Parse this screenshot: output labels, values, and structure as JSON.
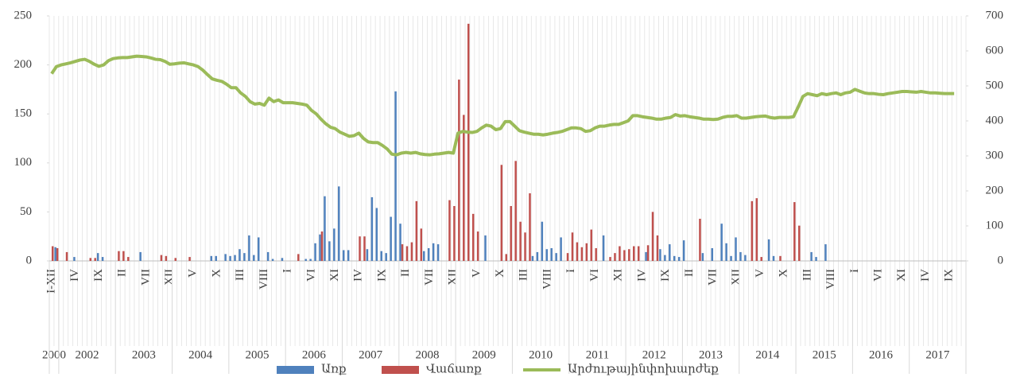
{
  "chart_data": {
    "type": "bar",
    "categories": [
      "I-XII",
      null,
      null,
      null,
      null,
      "IV",
      null,
      null,
      null,
      null,
      "IX",
      null,
      null,
      null,
      null,
      "II",
      null,
      null,
      null,
      null,
      "VII",
      null,
      null,
      null,
      null,
      "XII",
      null,
      null,
      null,
      null,
      "V",
      null,
      null,
      null,
      null,
      "X",
      null,
      null,
      null,
      null,
      "III",
      null,
      null,
      null,
      null,
      "VIII",
      null,
      null,
      null,
      null,
      "I",
      null,
      null,
      null,
      null,
      "VI",
      null,
      null,
      null,
      null,
      "XI",
      null,
      null,
      null,
      null,
      "IV",
      null,
      null,
      null,
      null,
      "IX",
      null,
      null,
      null,
      null,
      "II",
      null,
      null,
      null,
      null,
      "VII",
      null,
      null,
      null,
      null,
      "XII",
      null,
      null,
      null,
      null,
      "V",
      null,
      null,
      null,
      null,
      "X",
      null,
      null,
      null,
      null,
      "III",
      null,
      null,
      null,
      null,
      "VIII",
      null,
      null,
      null,
      null,
      "I",
      null,
      null,
      null,
      null,
      "VI",
      null,
      null,
      null,
      null,
      "XI",
      null,
      null,
      null,
      null,
      "IV",
      null,
      null,
      null,
      null,
      "IX",
      null,
      null,
      null,
      null,
      "II",
      null,
      null,
      null,
      null,
      "VII",
      null,
      null,
      null,
      null,
      "XII",
      null,
      null,
      null,
      null,
      "V",
      null,
      null,
      null,
      null,
      "X",
      null,
      null,
      null,
      null,
      "III",
      null,
      null,
      null,
      null,
      "VIII",
      null,
      null,
      null,
      null,
      "I",
      null,
      null,
      null,
      null,
      "VI",
      null,
      null,
      null,
      null,
      "XI",
      null,
      null,
      null,
      null,
      "IV",
      null,
      null,
      null,
      null,
      "IX",
      null,
      null,
      null
    ],
    "years": [
      "2000",
      "2002",
      "2003",
      "2004",
      "2005",
      "2006",
      "2007",
      "2008",
      "2009",
      "2010",
      "2011",
      "2012",
      "2013",
      "2014",
      "2015",
      "2016",
      "2017"
    ],
    "series": [
      {
        "name": "Առք",
        "color": "#4f81bd",
        "values": [
          0,
          14,
          0,
          0,
          0,
          4,
          0,
          0,
          0,
          0,
          8,
          4,
          0,
          0,
          0,
          0,
          0,
          0,
          0,
          9,
          0,
          0,
          0,
          0,
          0,
          0,
          0,
          0,
          0,
          0,
          0,
          0,
          0,
          0,
          5,
          5,
          0,
          7,
          5,
          6,
          12,
          8,
          26,
          6,
          24,
          0,
          9,
          2,
          0,
          3,
          0,
          0,
          0,
          0,
          2,
          2,
          18,
          27,
          66,
          20,
          33,
          76,
          11,
          11,
          0,
          0,
          0,
          12,
          65,
          54,
          10,
          8,
          45,
          173,
          38,
          0,
          0,
          0,
          0,
          10,
          13,
          18,
          17,
          0,
          0,
          0,
          0,
          0,
          0,
          0,
          0,
          0,
          26,
          0,
          0,
          0,
          0,
          0,
          0,
          0,
          0,
          0,
          5,
          9,
          40,
          12,
          13,
          8,
          24,
          0,
          0,
          0,
          0,
          0,
          0,
          0,
          0,
          26,
          0,
          0,
          0,
          0,
          0,
          0,
          0,
          0,
          9,
          0,
          0,
          12,
          6,
          17,
          5,
          4,
          21,
          0,
          0,
          0,
          8,
          0,
          13,
          0,
          38,
          18,
          5,
          24,
          9,
          6,
          0,
          0,
          0,
          0,
          22,
          5,
          0,
          0,
          0,
          0,
          0,
          0,
          0,
          9,
          4,
          0,
          17,
          0,
          0,
          0,
          0,
          0,
          0,
          0,
          0,
          0,
          0,
          0,
          0,
          0,
          0,
          0,
          0,
          0,
          0,
          0,
          0,
          0,
          0,
          0,
          0,
          0,
          0,
          0,
          0,
          0
        ]
      },
      {
        "name": "Վաճառք",
        "color": "#c0504d",
        "values": [
          15,
          13,
          0,
          9,
          0,
          0,
          0,
          0,
          3,
          3,
          0,
          0,
          0,
          0,
          10,
          10,
          4,
          0,
          0,
          0,
          0,
          0,
          0,
          6,
          5,
          0,
          3,
          0,
          0,
          4,
          0,
          0,
          0,
          0,
          0,
          0,
          0,
          0,
          0,
          0,
          0,
          0,
          0,
          0,
          0,
          0,
          0,
          0,
          0,
          0,
          0,
          0,
          7,
          0,
          0,
          0,
          0,
          30,
          0,
          0,
          0,
          0,
          0,
          0,
          0,
          25,
          25,
          0,
          0,
          0,
          0,
          0,
          0,
          0,
          17,
          15,
          19,
          61,
          33,
          0,
          0,
          0,
          0,
          0,
          62,
          56,
          185,
          149,
          242,
          48,
          30,
          0,
          0,
          0,
          0,
          98,
          7,
          56,
          102,
          40,
          29,
          69,
          0,
          0,
          0,
          0,
          0,
          0,
          0,
          8,
          29,
          19,
          14,
          18,
          32,
          13,
          0,
          0,
          4,
          8,
          15,
          11,
          12,
          15,
          15,
          0,
          16,
          50,
          26,
          0,
          0,
          0,
          0,
          0,
          0,
          0,
          0,
          43,
          0,
          0,
          0,
          0,
          0,
          0,
          0,
          0,
          0,
          0,
          61,
          64,
          4,
          0,
          0,
          0,
          5,
          0,
          0,
          60,
          36,
          0,
          0,
          0,
          0,
          0,
          0,
          0,
          0,
          0,
          0,
          0,
          0,
          0,
          0,
          0,
          0,
          0,
          0,
          0,
          0,
          0,
          0,
          0,
          0,
          0,
          0,
          0,
          0,
          0,
          0,
          0,
          0,
          0,
          0,
          0
        ]
      },
      {
        "name": "Արժութայինփոխարժեք",
        "color": "#9bbb59",
        "type": "line",
        "axis": "y2",
        "values": [
          535,
          555,
          560,
          563,
          566,
          570,
          574,
          576,
          570,
          562,
          556,
          560,
          572,
          578,
          580,
          581,
          581,
          583,
          585,
          584,
          583,
          580,
          576,
          575,
          570,
          562,
          563,
          565,
          566,
          563,
          560,
          555,
          545,
          532,
          520,
          516,
          513,
          505,
          495,
          495,
          480,
          470,
          455,
          448,
          450,
          445,
          465,
          455,
          460,
          452,
          452,
          452,
          450,
          448,
          445,
          430,
          420,
          405,
          392,
          382,
          378,
          368,
          362,
          356,
          358,
          365,
          350,
          340,
          338,
          338,
          330,
          320,
          305,
          303,
          308,
          310,
          308,
          310,
          306,
          304,
          303,
          305,
          306,
          308,
          310,
          308,
          365,
          370,
          368,
          367,
          370,
          380,
          388,
          385,
          375,
          378,
          398,
          398,
          385,
          372,
          368,
          365,
          362,
          362,
          360,
          362,
          365,
          367,
          370,
          375,
          380,
          380,
          378,
          370,
          372,
          380,
          385,
          385,
          388,
          390,
          390,
          395,
          400,
          415,
          415,
          412,
          410,
          408,
          405,
          405,
          408,
          410,
          418,
          414,
          415,
          412,
          410,
          408,
          405,
          405,
          404,
          405,
          410,
          413,
          413,
          415,
          408,
          408,
          410,
          412,
          413,
          414,
          410,
          408,
          410,
          410,
          410,
          412,
          440,
          470,
          478,
          475,
          472,
          478,
          475,
          478,
          480,
          475,
          480,
          482,
          490,
          485,
          480,
          478,
          478,
          476,
          475,
          478,
          480,
          482,
          484,
          484,
          483,
          482,
          484,
          482,
          480,
          480,
          479,
          478,
          478,
          478,
          null,
          null
        ]
      }
    ],
    "ylim": [
      0,
      250
    ],
    "yticks": [
      0,
      50,
      100,
      150,
      200,
      250
    ],
    "y2lim": [
      0,
      700
    ],
    "y2ticks": [
      0,
      100,
      200,
      300,
      400,
      500,
      600,
      700
    ],
    "legend": "bottom"
  }
}
